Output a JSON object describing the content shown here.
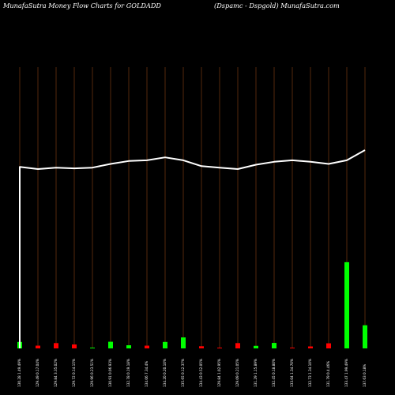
{
  "header": {
    "title": "MunafaSutra  Money Flow  Charts for GOLDADD",
    "subtitle": "(Dspamc -  Dspgold) MunafaSutra.com"
  },
  "colors": {
    "background": "#000000",
    "gridline": "#8B4513",
    "up_bar": "#00ff00",
    "down_bar": "#ff0000",
    "price_line": "#ffffff",
    "label": "#ffffff"
  },
  "chart_data": {
    "type": "bar",
    "title": "MunafaSutra  Money Flow  Charts for GOLDADD",
    "x_tick_labels": [
      "130.28 1.49.49%",
      "129.49 0.17.04%",
      "129.84 3.35.02%",
      "129.72 0.14.15%",
      "129.96 0.23.51%",
      "130.91 0.06.93%",
      "132.78 0.19.18%",
      "134.06 7.34.4%",
      "134.20 0.20.10%",
      "135.65 0.12.37%",
      "134.43 0.52.05%",
      "129.84 1.02.95%",
      "129.09 0.21.05%",
      "131.29 1.15.89%",
      "132.45 0.18.80%",
      "133.04 1.34.70%",
      "132.73 1.34.10%",
      "131.79 0.4.46%",
      "133.47 1.99.49%",
      "137.63 0.18%"
    ],
    "price": [
      129.2,
      128.9,
      129.1,
      129.0,
      129.1,
      129.6,
      130.0,
      130.1,
      130.5,
      130.1,
      129.3,
      129.1,
      128.9,
      129.5,
      129.9,
      130.1,
      129.9,
      129.6,
      130.1,
      131.5
    ],
    "money_flow": [
      {
        "value": 33,
        "direction": "up"
      },
      {
        "value": 14,
        "direction": "down"
      },
      {
        "value": 27,
        "direction": "down"
      },
      {
        "value": 20,
        "direction": "down"
      },
      {
        "value": 4,
        "direction": "up"
      },
      {
        "value": 34,
        "direction": "up"
      },
      {
        "value": 16,
        "direction": "up"
      },
      {
        "value": 14,
        "direction": "down"
      },
      {
        "value": 33,
        "direction": "up"
      },
      {
        "value": 56,
        "direction": "up"
      },
      {
        "value": 11,
        "direction": "down"
      },
      {
        "value": 4,
        "direction": "down"
      },
      {
        "value": 27,
        "direction": "down"
      },
      {
        "value": 13,
        "direction": "up"
      },
      {
        "value": 28,
        "direction": "up"
      },
      {
        "value": 4,
        "direction": "down"
      },
      {
        "value": 10,
        "direction": "down"
      },
      {
        "value": 26,
        "direction": "down"
      },
      {
        "value": 440,
        "direction": "up"
      },
      {
        "value": 118,
        "direction": "up"
      }
    ]
  }
}
